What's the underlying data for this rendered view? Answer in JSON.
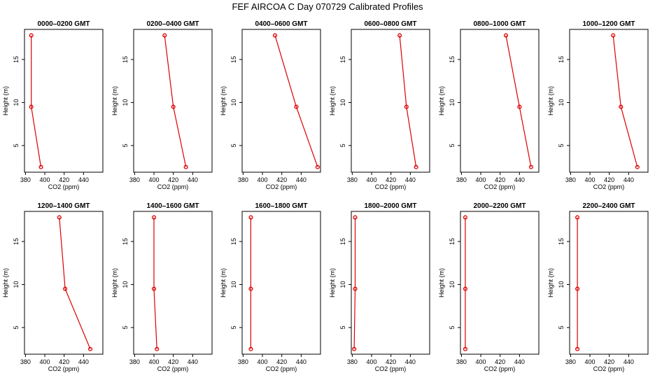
{
  "title": "FEF AIRCOA C  Day 070729  Calibrated Profiles",
  "colors": {
    "series": "#dd0000",
    "axis": "#000000",
    "background": "#ffffff"
  },
  "chart_data": [
    {
      "type": "line",
      "title": "0000–0200 GMT",
      "xlabel": "CO2 (ppm)",
      "ylabel": "Height (m)",
      "xlim": [
        379,
        460
      ],
      "ylim": [
        1.9,
        18.5
      ],
      "xticks": [
        380,
        400,
        420,
        440
      ],
      "yticks": [
        5,
        10,
        15
      ],
      "grid": false,
      "x": [
        386,
        386,
        396
      ],
      "y": [
        17.8,
        9.5,
        2.5
      ]
    },
    {
      "type": "line",
      "title": "0200–0400 GMT",
      "xlabel": "CO2 (ppm)",
      "ylabel": "Height (m)",
      "xlim": [
        379,
        460
      ],
      "ylim": [
        1.9,
        18.5
      ],
      "xticks": [
        380,
        400,
        420,
        440
      ],
      "yticks": [
        5,
        10,
        15
      ],
      "grid": false,
      "x": [
        411,
        420,
        433
      ],
      "y": [
        17.8,
        9.5,
        2.5
      ]
    },
    {
      "type": "line",
      "title": "0400–0600 GMT",
      "xlabel": "CO2 (ppm)",
      "ylabel": "Height (m)",
      "xlim": [
        379,
        460
      ],
      "ylim": [
        1.9,
        18.5
      ],
      "xticks": [
        380,
        400,
        420,
        440
      ],
      "yticks": [
        5,
        10,
        15
      ],
      "grid": false,
      "x": [
        413,
        435,
        457
      ],
      "y": [
        17.8,
        9.5,
        2.5
      ]
    },
    {
      "type": "line",
      "title": "0600–0800 GMT",
      "xlabel": "CO2 (ppm)",
      "ylabel": "Height (m)",
      "xlim": [
        379,
        460
      ],
      "ylim": [
        1.9,
        18.5
      ],
      "xticks": [
        380,
        400,
        420,
        440
      ],
      "yticks": [
        5,
        10,
        15
      ],
      "grid": false,
      "x": [
        429,
        436,
        446
      ],
      "y": [
        17.8,
        9.5,
        2.5
      ]
    },
    {
      "type": "line",
      "title": "0800–1000 GMT",
      "xlabel": "CO2 (ppm)",
      "ylabel": "Height (m)",
      "xlim": [
        379,
        460
      ],
      "ylim": [
        1.9,
        18.5
      ],
      "xticks": [
        380,
        400,
        420,
        440
      ],
      "yticks": [
        5,
        10,
        15
      ],
      "grid": false,
      "x": [
        426,
        440,
        452
      ],
      "y": [
        17.8,
        9.5,
        2.5
      ]
    },
    {
      "type": "line",
      "title": "1000–1200 GMT",
      "xlabel": "CO2 (ppm)",
      "ylabel": "Height (m)",
      "xlim": [
        379,
        460
      ],
      "ylim": [
        1.9,
        18.5
      ],
      "xticks": [
        380,
        400,
        420,
        440
      ],
      "yticks": [
        5,
        10,
        15
      ],
      "grid": false,
      "x": [
        424,
        432,
        449
      ],
      "y": [
        17.8,
        9.5,
        2.5
      ]
    },
    {
      "type": "line",
      "title": "1200–1400 GMT",
      "xlabel": "CO2 (ppm)",
      "ylabel": "Height (m)",
      "xlim": [
        379,
        460
      ],
      "ylim": [
        1.9,
        18.5
      ],
      "xticks": [
        380,
        400,
        420,
        440
      ],
      "yticks": [
        5,
        10,
        15
      ],
      "grid": false,
      "x": [
        415,
        421,
        447
      ],
      "y": [
        17.8,
        9.5,
        2.5
      ]
    },
    {
      "type": "line",
      "title": "1400–1600 GMT",
      "xlabel": "CO2 (ppm)",
      "ylabel": "Height (m)",
      "xlim": [
        379,
        460
      ],
      "ylim": [
        1.9,
        18.5
      ],
      "xticks": [
        380,
        400,
        420,
        440
      ],
      "yticks": [
        5,
        10,
        15
      ],
      "grid": false,
      "x": [
        400,
        400,
        403
      ],
      "y": [
        17.8,
        9.5,
        2.5
      ]
    },
    {
      "type": "line",
      "title": "1600–1800 GMT",
      "xlabel": "CO2 (ppm)",
      "ylabel": "Height (m)",
      "xlim": [
        379,
        460
      ],
      "ylim": [
        1.9,
        18.5
      ],
      "xticks": [
        380,
        400,
        420,
        440
      ],
      "yticks": [
        5,
        10,
        15
      ],
      "grid": false,
      "x": [
        388,
        388,
        388
      ],
      "y": [
        17.8,
        9.5,
        2.5
      ]
    },
    {
      "type": "line",
      "title": "1800–2000 GMT",
      "xlabel": "CO2 (ppm)",
      "ylabel": "Height (m)",
      "xlim": [
        379,
        460
      ],
      "ylim": [
        1.9,
        18.5
      ],
      "xticks": [
        380,
        400,
        420,
        440
      ],
      "yticks": [
        5,
        10,
        15
      ],
      "grid": false,
      "x": [
        383,
        383,
        382
      ],
      "y": [
        17.8,
        9.5,
        2.5
      ]
    },
    {
      "type": "line",
      "title": "2000–2200 GMT",
      "xlabel": "CO2 (ppm)",
      "ylabel": "Height (m)",
      "xlim": [
        379,
        460
      ],
      "ylim": [
        1.9,
        18.5
      ],
      "xticks": [
        380,
        400,
        420,
        440
      ],
      "yticks": [
        5,
        10,
        15
      ],
      "grid": false,
      "x": [
        384,
        384,
        384
      ],
      "y": [
        17.8,
        9.5,
        2.5
      ]
    },
    {
      "type": "line",
      "title": "2200–2400 GMT",
      "xlabel": "CO2 (ppm)",
      "ylabel": "Height (m)",
      "xlim": [
        379,
        460
      ],
      "ylim": [
        1.9,
        18.5
      ],
      "xticks": [
        380,
        400,
        420,
        440
      ],
      "yticks": [
        5,
        10,
        15
      ],
      "grid": false,
      "x": [
        387,
        387,
        387
      ],
      "y": [
        17.8,
        9.5,
        2.5
      ]
    }
  ]
}
